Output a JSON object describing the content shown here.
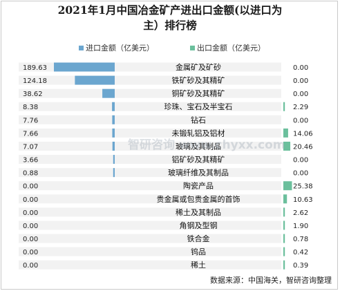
{
  "chart_data": {
    "type": "bar",
    "title": "2021年1月中国冶金矿产进出口金额(以进口为主）排行榜",
    "title_lines": [
      "2021年1月中国冶金矿产进出口金额(以进口为",
      "主）排行榜"
    ],
    "categories": [
      "金属矿及矿砂",
      "铁矿砂及其精矿",
      "铜矿砂及其精矿",
      "珍珠、宝石及半宝石",
      "钻石",
      "未锻轧铝及铝材",
      "玻璃及其制品",
      "铝矿砂及其精矿",
      "玻璃纤维及其制品",
      "陶瓷产品",
      "贵金属或包贵金属的首饰",
      "稀土及其制品",
      "角钢及型钢",
      "铁合金",
      "钨品",
      "稀土"
    ],
    "series": [
      {
        "name": "进口金额（亿美元）",
        "color": "#6ba6cf",
        "values": [
          189.63,
          124.18,
          38.62,
          8.38,
          7.76,
          7.66,
          7.07,
          3.66,
          0.88,
          0.0,
          0.0,
          0.0,
          0.0,
          0.0,
          0.0,
          0.0
        ]
      },
      {
        "name": "出口金额（亿美元）",
        "color": "#6bbf9c",
        "values": [
          0.0,
          0.0,
          0.0,
          2.29,
          0.0,
          14.06,
          20.46,
          0.0,
          0.0,
          25.38,
          10.63,
          2.62,
          1.9,
          0.78,
          0.42,
          0.39
        ]
      }
    ],
    "value_labels": {
      "import": [
        "189.63",
        "124.18",
        "38.62",
        "8.38",
        "7.76",
        "7.66",
        "7.07",
        "3.66",
        "0.88",
        "0.00",
        "0.00",
        "0.00",
        "0.00",
        "0.00",
        "0.00",
        "0.00"
      ],
      "export": [
        "0.00",
        "0.00",
        "0.00",
        "2.29",
        "0.00",
        "14.06",
        "20.46",
        "0.00",
        "0.00",
        "25.38",
        "10.63",
        "2.62",
        "1.90",
        "0.78",
        "0.42",
        "0.39"
      ]
    },
    "row_band_color": "#f2f2f2",
    "legend_position": "top"
  },
  "source": "数据来源：中国海关，智研咨询整理",
  "watermark": "智研咨询 www.chyxx.com"
}
